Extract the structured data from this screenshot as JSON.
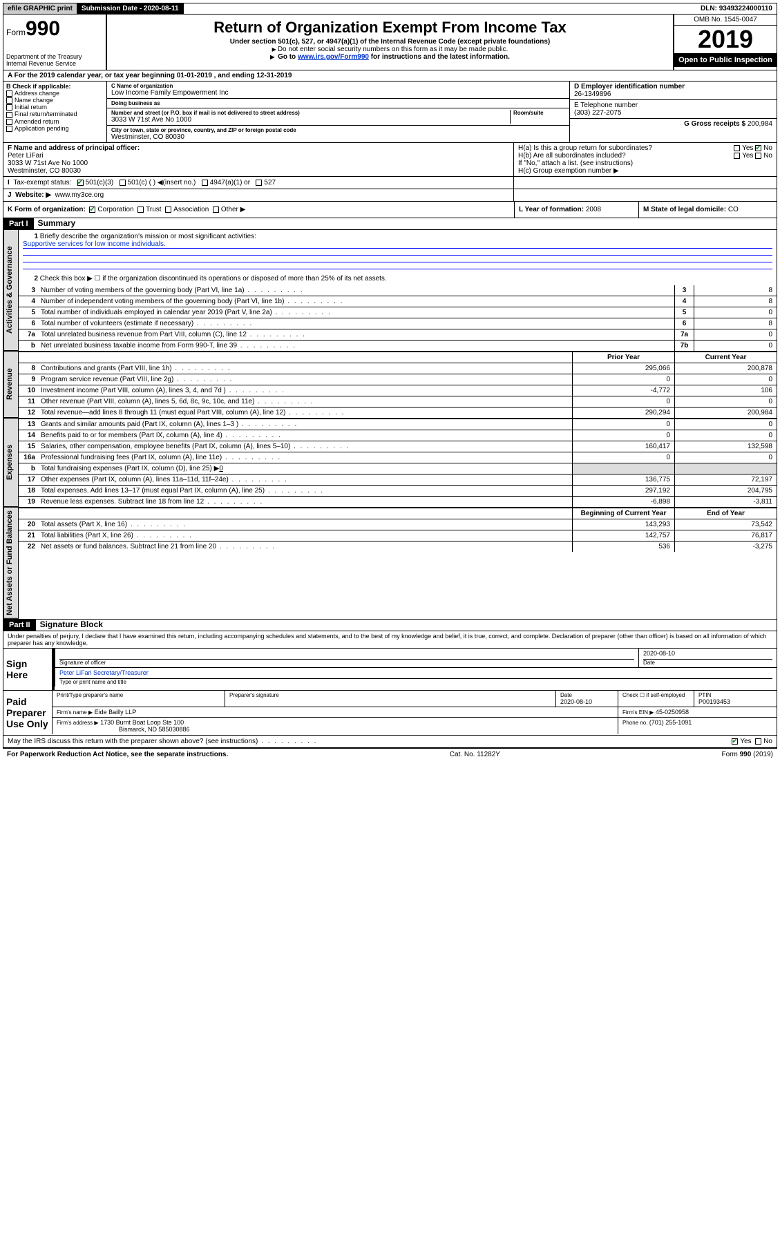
{
  "topbar": {
    "efile": "efile GRAPHIC",
    "print": "print",
    "sub_label": "Submission Date - ",
    "sub_date": "2020-08-11",
    "dln_label": "DLN: ",
    "dln": "93493224000110"
  },
  "header": {
    "form_prefix": "Form",
    "form_num": "990",
    "dept": "Department of the Treasury\nInternal Revenue Service",
    "title": "Return of Organization Exempt From Income Tax",
    "sub1": "Under section 501(c), 527, or 4947(a)(1) of the Internal Revenue Code (except private foundations)",
    "sub2": "Do not enter social security numbers on this form as it may be made public.",
    "sub3_pre": "Go to ",
    "sub3_link": "www.irs.gov/Form990",
    "sub3_post": " for instructions and the latest information.",
    "omb": "OMB No. 1545-0047",
    "year": "2019",
    "inspect": "Open to Public Inspection"
  },
  "period": {
    "text_pre": "For the 2019 calendar year, or tax year beginning ",
    "begin": "01-01-2019",
    "mid": " , and ending ",
    "end": "12-31-2019"
  },
  "colB": {
    "header": "B Check if applicable:",
    "opts": [
      "Address change",
      "Name change",
      "Initial return",
      "Final return/terminated",
      "Amended return",
      "Application pending"
    ]
  },
  "colC": {
    "name_label": "C Name of organization",
    "name": "Low Income Family Empowerment Inc",
    "dba_label": "Doing business as",
    "dba": "",
    "addr_label": "Number and street (or P.O. box if mail is not delivered to street address)",
    "addr": "3033 W 71st Ave No 1000",
    "room_label": "Room/suite",
    "city_label": "City or town, state or province, country, and ZIP or foreign postal code",
    "city": "Westminster, CO  80030"
  },
  "colD": {
    "ein_label": "D Employer identification number",
    "ein": "26-1349896",
    "phone_label": "E Telephone number",
    "phone": "(303) 227-2075",
    "gross_label": "G Gross receipts $ ",
    "gross": "200,984"
  },
  "rowF": {
    "label": "F  Name and address of principal officer:",
    "name": "Peter LiFari",
    "addr1": "3033 W 71st Ave No 1000",
    "addr2": "Westminster, CO  80030"
  },
  "rowH": {
    "a": "H(a)  Is this a group return for subordinates?",
    "b": "H(b)  Are all subordinates included?",
    "b_note": "If \"No,\" attach a list. (see instructions)",
    "c": "H(c)  Group exemption number ▶"
  },
  "rowI": {
    "label": "Tax-exempt status:",
    "opt1": "501(c)(3)",
    "opt2": "501(c) (  ) ◀(insert no.)",
    "opt3": "4947(a)(1) or",
    "opt4": "527"
  },
  "rowJ": {
    "label": "Website: ▶",
    "val": "www.my3ce.org"
  },
  "rowK": {
    "label": "K Form of organization:",
    "opts": [
      "Corporation",
      "Trust",
      "Association",
      "Other ▶"
    ],
    "L_label": "L Year of formation: ",
    "L_val": "2008",
    "M_label": "M State of legal domicile: ",
    "M_val": "CO"
  },
  "partI": {
    "tag": "Part I",
    "title": "Summary"
  },
  "summary": {
    "tabs": [
      "Activities & Governance",
      "Revenue",
      "Expenses",
      "Net Assets or Fund Balances"
    ],
    "q1": "Briefly describe the organization's mission or most significant activities:",
    "q1_ans": "Supportive services for low income individuals.",
    "q2": "Check this box ▶ ☐  if the organization discontinued its operations or disposed of more than 25% of its net assets.",
    "lines_gov": [
      {
        "n": "3",
        "d": "Number of voting members of the governing body (Part VI, line 1a)",
        "box": "3",
        "v": "8"
      },
      {
        "n": "4",
        "d": "Number of independent voting members of the governing body (Part VI, line 1b)",
        "box": "4",
        "v": "8"
      },
      {
        "n": "5",
        "d": "Total number of individuals employed in calendar year 2019 (Part V, line 2a)",
        "box": "5",
        "v": "0"
      },
      {
        "n": "6",
        "d": "Total number of volunteers (estimate if necessary)",
        "box": "6",
        "v": "8"
      },
      {
        "n": "7a",
        "d": "Total unrelated business revenue from Part VIII, column (C), line 12",
        "box": "7a",
        "v": "0"
      },
      {
        "n": "b",
        "d": "Net unrelated business taxable income from Form 990-T, line 39",
        "box": "7b",
        "v": "0"
      }
    ],
    "hdr_prior": "Prior Year",
    "hdr_curr": "Current Year",
    "lines_rev": [
      {
        "n": "8",
        "d": "Contributions and grants (Part VIII, line 1h)",
        "p": "295,066",
        "c": "200,878"
      },
      {
        "n": "9",
        "d": "Program service revenue (Part VIII, line 2g)",
        "p": "0",
        "c": "0"
      },
      {
        "n": "10",
        "d": "Investment income (Part VIII, column (A), lines 3, 4, and 7d )",
        "p": "-4,772",
        "c": "106"
      },
      {
        "n": "11",
        "d": "Other revenue (Part VIII, column (A), lines 5, 6d, 8c, 9c, 10c, and 11e)",
        "p": "0",
        "c": "0"
      },
      {
        "n": "12",
        "d": "Total revenue—add lines 8 through 11 (must equal Part VIII, column (A), line 12)",
        "p": "290,294",
        "c": "200,984"
      }
    ],
    "lines_exp": [
      {
        "n": "13",
        "d": "Grants and similar amounts paid (Part IX, column (A), lines 1–3 )",
        "p": "0",
        "c": "0"
      },
      {
        "n": "14",
        "d": "Benefits paid to or for members (Part IX, column (A), line 4)",
        "p": "0",
        "c": "0"
      },
      {
        "n": "15",
        "d": "Salaries, other compensation, employee benefits (Part IX, column (A), lines 5–10)",
        "p": "160,417",
        "c": "132,598"
      },
      {
        "n": "16a",
        "d": "Professional fundraising fees (Part IX, column (A), line 11e)",
        "p": "0",
        "c": "0"
      }
    ],
    "line16b": {
      "n": "b",
      "d": "Total fundraising expenses (Part IX, column (D), line 25) ▶",
      "v": "0"
    },
    "lines_exp2": [
      {
        "n": "17",
        "d": "Other expenses (Part IX, column (A), lines 11a–11d, 11f–24e)",
        "p": "136,775",
        "c": "72,197"
      },
      {
        "n": "18",
        "d": "Total expenses. Add lines 13–17 (must equal Part IX, column (A), line 25)",
        "p": "297,192",
        "c": "204,795"
      },
      {
        "n": "19",
        "d": "Revenue less expenses. Subtract line 18 from line 12",
        "p": "-6,898",
        "c": "-3,811"
      }
    ],
    "hdr_begin": "Beginning of Current Year",
    "hdr_end": "End of Year",
    "lines_net": [
      {
        "n": "20",
        "d": "Total assets (Part X, line 16)",
        "p": "143,293",
        "c": "73,542"
      },
      {
        "n": "21",
        "d": "Total liabilities (Part X, line 26)",
        "p": "142,757",
        "c": "76,817"
      },
      {
        "n": "22",
        "d": "Net assets or fund balances. Subtract line 21 from line 20",
        "p": "536",
        "c": "-3,275"
      }
    ]
  },
  "partII": {
    "tag": "Part II",
    "title": "Signature Block",
    "decl": "Under penalties of perjury, I declare that I have examined this return, including accompanying schedules and statements, and to the best of my knowledge and belief, it is true, correct, and complete. Declaration of preparer (other than officer) is based on all information of which preparer has any knowledge."
  },
  "sign": {
    "label": "Sign Here",
    "sig_label": "Signature of officer",
    "date": "2020-08-10",
    "date_label": "Date",
    "name": "Peter LiFari  Secretary/Treasurer",
    "name_label": "Type or print name and title"
  },
  "paid": {
    "label": "Paid Preparer Use Only",
    "prep_name_label": "Print/Type preparer's name",
    "prep_sig_label": "Preparer's signature",
    "prep_date_label": "Date",
    "prep_date": "2020-08-10",
    "check_label": "Check ☐ if self-employed",
    "ptin_label": "PTIN",
    "ptin": "P00193453",
    "firm_name_label": "Firm's name    ▶",
    "firm_name": "Eide Bailly LLP",
    "firm_ein_label": "Firm's EIN ▶",
    "firm_ein": "45-0250958",
    "firm_addr_label": "Firm's address ▶",
    "firm_addr1": "1730 Burnt Boat Loop Ste 100",
    "firm_addr2": "Bismarck, ND  585030886",
    "phone_label": "Phone no. ",
    "phone": "(701) 255-1091"
  },
  "footer": {
    "discuss": "May the IRS discuss this return with the preparer shown above? (see instructions)",
    "pra": "For Paperwork Reduction Act Notice, see the separate instructions.",
    "cat": "Cat. No. 11282Y",
    "form": "Form 990 (2019)"
  }
}
